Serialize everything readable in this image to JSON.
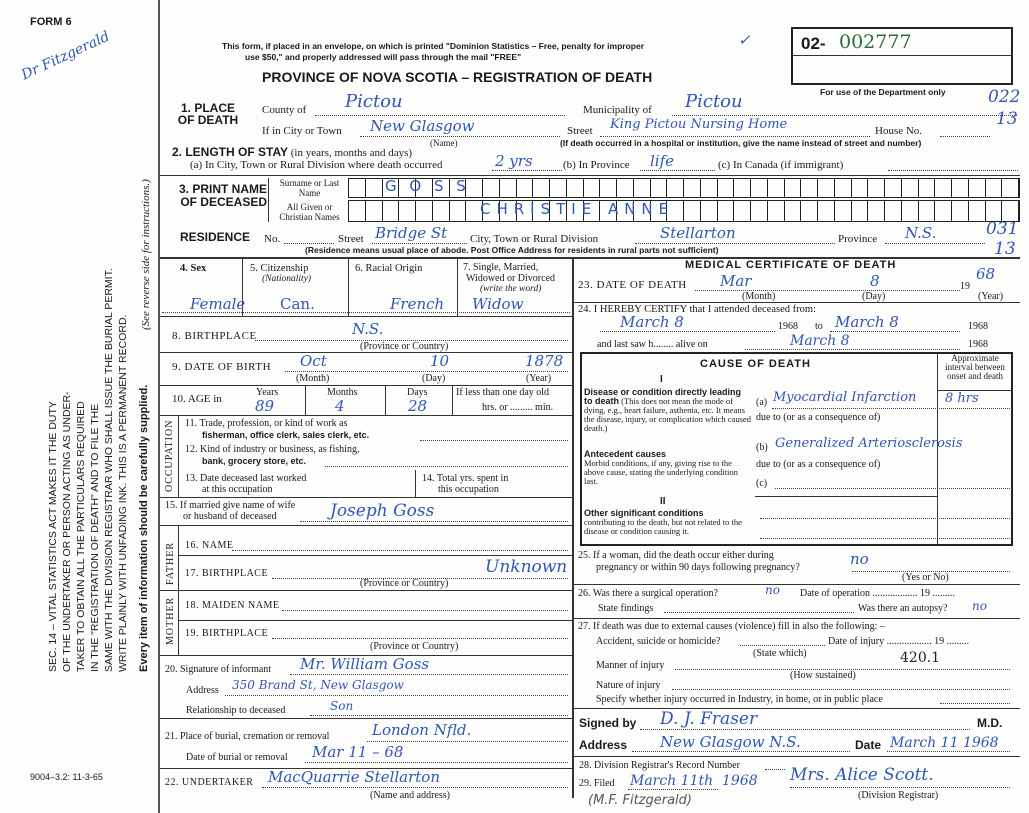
{
  "form_number": "FORM 6",
  "margin_note": "Dr Fitzgerald",
  "sidebar": {
    "lines": [
      "SEC. 14 – VITAL STATISTICS ACT MAKES IT THE DUTY",
      "OF THE UNDERTAKER OR PERSON ACTING AS UNDER-",
      "TAKER TO OBTAIN ALL THE PARTICULARS REQUIRED",
      "IN THE \"REGISTRATION OF DEATH\" AND TO FILE THE",
      "SAME WITH THE DIVISION REGISTRAR WHO SHALL ISSUE THE BURIAL PERMIT.",
      "WRITE PLAINLY WITH UNFADING INK. THIS IS A PERMANENT RECORD."
    ],
    "every_item": "Every item of information should be carefully supplied.",
    "see_reverse": "(See reverse side for instructions.)",
    "print_code": "9004–3.2: 11-3-65"
  },
  "header": {
    "mail_note_1": "This form, if placed in an envelope, on which is printed \"Dominion Statistics – Free, penalty for improper",
    "mail_note_2": "use $50,\" and properly addressed will pass through the mail \"FREE\"",
    "title": "PROVINCE OF NOVA SCOTIA – REGISTRATION OF DEATH",
    "serial_prefix": "02-",
    "serial_number": "002777",
    "checkmark": "✓",
    "dept_use": "For use of the Department only",
    "dept_codes": [
      "022",
      "13",
      "031",
      "13"
    ]
  },
  "place_of_death": {
    "label": "1. PLACE OF DEATH",
    "county_label": "County of",
    "county": "Pictou",
    "municipality_label": "Municipality of",
    "municipality": "Pictou",
    "city_label": "If in City or Town",
    "city": "New Glasgow",
    "name_note": "(Name)",
    "street_label": "Street",
    "street": "King Pictou Nursing Home",
    "house_label": "House No.",
    "street_note": "(If death occurred in a hospital or institution, give the name instead of street and number)"
  },
  "length_of_stay": {
    "label": "2. LENGTH OF STAY",
    "sub": "(in years, months and days)",
    "a_label": "(a) In City, Town or Rural Division where death occurred",
    "a": "2 yrs",
    "b_label": "(b) In Province",
    "b": "life",
    "c_label": "(c) In Canada (if immigrant)"
  },
  "name": {
    "label": "3. PRINT NAME OF DECEASED",
    "surname_label": "Surname or Last Name",
    "surname": "G O S S",
    "given_label": "All Given or Christian Names",
    "given": "CHRISTIE  ANNE"
  },
  "residence": {
    "label": "RESIDENCE",
    "no_label": "No.",
    "street_label": "Street",
    "street": "Bridge St",
    "city_label": "City, Town or Rural Division",
    "city": "Stellarton",
    "province_label": "Province",
    "province": "N.S.",
    "note": "(Residence means usual place of abode. Post Office Address for residents in rural parts not sufficient)"
  },
  "personal": {
    "sex_label": "4. Sex",
    "sex": "Female",
    "citizenship_label": "5. Citizenship",
    "citizenship_sub": "(Nationality)",
    "citizenship": "Can.",
    "racial_label": "6. Racial Origin",
    "racial": "French",
    "marital_label_1": "7. Single, Married,",
    "marital_label_2": "Widowed or Divorced",
    "marital_label_3": "(write the word)",
    "marital": "Widow",
    "birthplace_label": "8. BIRTHPLACE",
    "birthplace": "N.S.",
    "prov_country": "(Province or Country)",
    "dob_label": "9. DATE OF BIRTH",
    "dob_month": "Oct",
    "dob_day": "10",
    "dob_year": "1878",
    "month": "(Month)",
    "day": "(Day)",
    "year": "(Year)",
    "age_label": "10. AGE in",
    "years_label": "Years",
    "years": "89",
    "months_label": "Months",
    "months": "4",
    "days_label": "Days",
    "days": "28",
    "less_label": "If less than one day old",
    "hrs_min": "hrs. or ......... min."
  },
  "occupation": {
    "side": "OCCUPATION",
    "q11a": "11. Trade, profession, or kind of work as",
    "q11b": "fisherman, office clerk, sales clerk, etc.",
    "q12a": "12. Kind of industry or business, as fishing,",
    "q12b": "bank, grocery store, etc.",
    "q13a": "13. Date deceased last worked",
    "q13b": "at this occupation",
    "q14a": "14. Total yrs. spent in",
    "q14b": "this occupation"
  },
  "spouse": {
    "label_1": "15. If married give name of wife",
    "label_2": "or husband of deceased",
    "value": "Joseph Goss"
  },
  "father": {
    "side": "FATHER",
    "name_label": "16. NAME",
    "birthplace_label": "17. BIRTHPLACE",
    "birthplace": "Unknown",
    "prov_country": "(Province or Country)"
  },
  "mother": {
    "side": "MOTHER",
    "maiden_label": "18. MAIDEN NAME",
    "birthplace_label": "19. BIRTHPLACE",
    "prov_country": "(Province or Country)"
  },
  "informant": {
    "sig_label": "20. Signature of informant",
    "sig": "Mr. William Goss",
    "address_label": "Address",
    "address": "350 Brand St, New Glasgow",
    "rel_label": "Relationship to deceased",
    "rel": "Son"
  },
  "burial": {
    "place_label": "21. Place of burial, cremation or removal",
    "place": "London Nfld.",
    "date_label": "Date of burial or removal",
    "date": "Mar 11 – 68"
  },
  "undertaker": {
    "label": "22. UNDERTAKER",
    "value": "MacQuarrie Stellarton",
    "note": "(Name and address)"
  },
  "medical": {
    "title": "MEDICAL CERTIFICATE OF DEATH",
    "dod_label": "23. DATE OF DEATH",
    "dod_month": "Mar",
    "dod_day": "8",
    "dod_year_prefix": "19",
    "dod_year": "68",
    "certify_label": "24. I HEREBY CERTIFY that I attended deceased from:",
    "from": "March 8",
    "from_year": "1968",
    "to_label": "to",
    "to": "March 8",
    "to_year": "1968",
    "last_saw_label": "and last saw h........ alive on",
    "last_saw": "March 8",
    "last_saw_year": "1968",
    "cause_title": "CAUSE OF DEATH",
    "interval_label": "Approximate interval between onset and death",
    "part1": "I",
    "part2": "II",
    "direct_title": "Disease or condition directly leading to death",
    "direct_desc": "(This does not mean the mode of dying, e.g., heart failure, asthenia, etc. It means the disease, injury, or complication which caused death.)",
    "antecedent_title": "Antecedent causes",
    "antecedent_desc": "Morbid conditions, if any, giving rise to the above cause, stating the underlying condition last.",
    "other_title": "Other significant conditions",
    "other_desc": "contributing to the death, but not related to the disease or condition causing it.",
    "cause_a": "Myocardial Infarction",
    "interval_a": "8 hrs",
    "cause_b": "Generalized Arteriosclerosis",
    "due_to": "due to (or as a consequence of)",
    "a": "(a)",
    "b": "(b)",
    "c": "(c)",
    "q25a": "25. If a woman, did the death occur either during",
    "q25b": "pregnancy or within 90 days following pregnancy?",
    "q25": "no",
    "yes_no": "(Yes or No)",
    "q26": "26. Was there a surgical operation?",
    "q26_val": "no",
    "op_date": "Date of operation .................. 19 .........",
    "findings": "State findings",
    "autopsy": "Was there an autopsy?",
    "autopsy_val": "no",
    "q27": "27. If death was due to external causes (violence) fill in also the following: –",
    "accident": "Accident, suicide or homicide?",
    "state_which": "(State which)",
    "injury_date": "Date of injury .................. 19 .........",
    "manner": "Manner of injury",
    "how": "(How sustained)",
    "code": "420.1",
    "nature": "Nature of injury",
    "specify": "Specify whether injury occurred in Industry, in home, or in public place",
    "signed_label": "Signed by",
    "signed": "D. J. Fraser",
    "md": "M.D.",
    "address_label": "Address",
    "address": "New Glasgow N.S.",
    "date_label": "Date",
    "date": "March 11 1968",
    "q28": "28. Division Registrar's Record Number",
    "q29": "29. Filed",
    "filed": "March 11th",
    "filed_year": "1968",
    "registrar": "Mrs. Alice Scott.",
    "registrar_label": "(Division Registrar)",
    "footnote": "(M.F. Fitzgerald)"
  },
  "colors": {
    "ink": "#2f56b8",
    "serial": "#2e6b3a"
  }
}
